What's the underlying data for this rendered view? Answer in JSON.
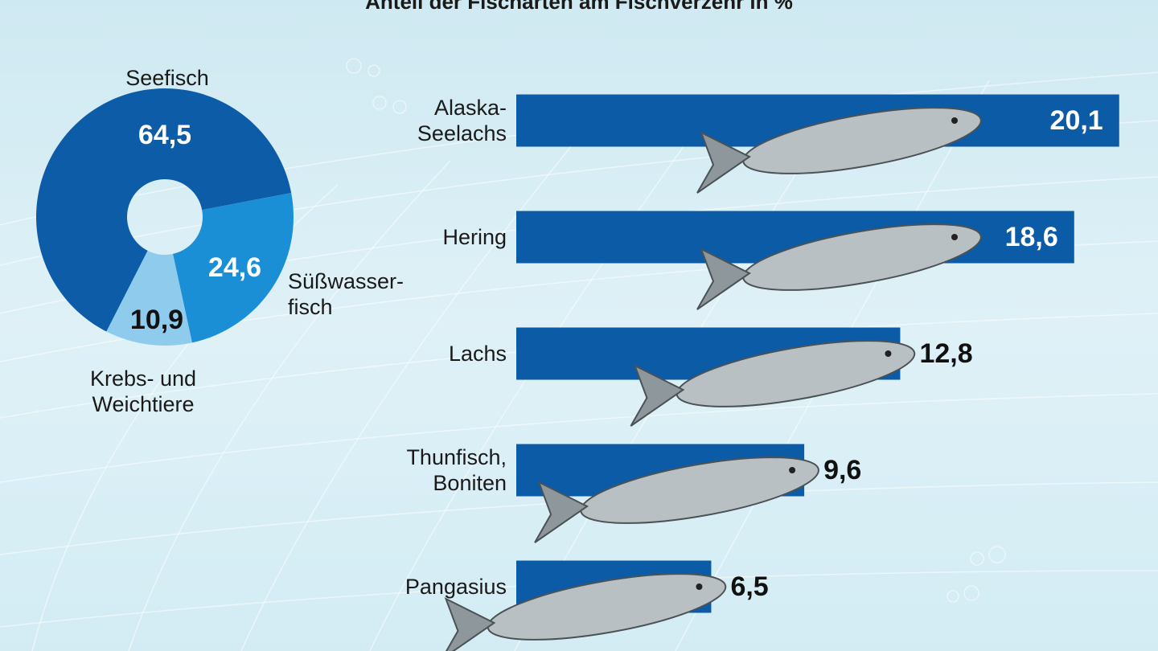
{
  "chart_data": [
    {
      "type": "pie",
      "title": "Anteil der Fischarten am Fischverzehr in %",
      "categories": [
        "Seefisch",
        "Süßwasser-\nfisch",
        "Krebs- und\nWeichtiere"
      ],
      "values": [
        64.5,
        24.6,
        10.9
      ],
      "value_labels": [
        "64,5",
        "24,6",
        "10,9"
      ],
      "colors": [
        "#0d5ca8",
        "#1a8fd6",
        "#8fcbed"
      ]
    },
    {
      "type": "bar",
      "orientation": "horizontal",
      "categories": [
        "Alaska-\nSeelachs",
        "Hering",
        "Lachs",
        "Thunfisch,\nBoniten",
        "Pangasius"
      ],
      "values": [
        20.1,
        18.6,
        12.8,
        9.6,
        6.5
      ],
      "value_labels": [
        "20,1",
        "18,6",
        "12,8",
        "9,6",
        "6,5"
      ],
      "color": "#0b5ba7"
    }
  ]
}
